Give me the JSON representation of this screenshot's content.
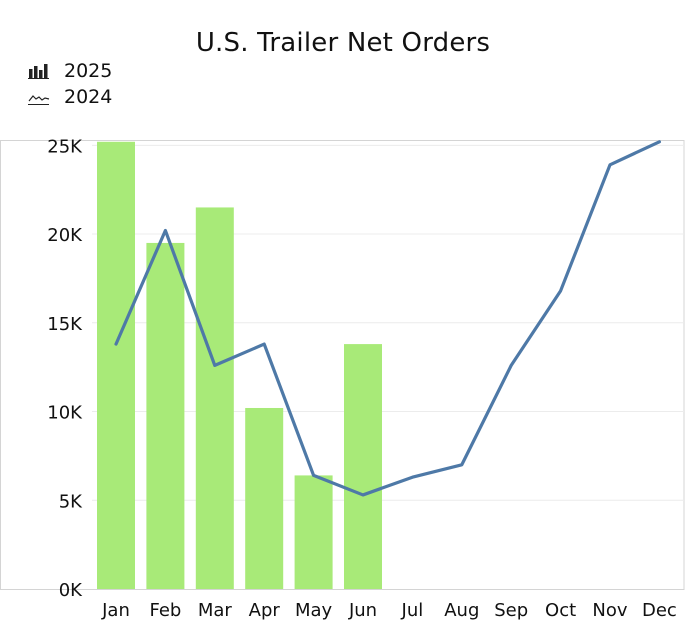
{
  "chart_data": {
    "type": "bar",
    "title": "U.S. Trailer Net Orders",
    "categories": [
      "Jan",
      "Feb",
      "Mar",
      "Apr",
      "May",
      "Jun",
      "Jul",
      "Aug",
      "Sep",
      "Oct",
      "Nov",
      "Dec"
    ],
    "series": [
      {
        "name": "2025",
        "type": "bar",
        "color": "#a8ea78",
        "values": [
          25200,
          19500,
          21500,
          10200,
          6400,
          13800,
          null,
          null,
          null,
          null,
          null,
          null
        ]
      },
      {
        "name": "2024",
        "type": "line",
        "color": "#4e79a7",
        "values": [
          13800,
          20200,
          12600,
          13800,
          6400,
          5300,
          6300,
          7000,
          12600,
          16800,
          23900,
          25200
        ]
      }
    ],
    "y_ticks": [
      "0K",
      "5K",
      "10K",
      "15K",
      "20K",
      "25K"
    ],
    "y_tick_values": [
      0,
      5000,
      10000,
      15000,
      20000,
      25000
    ],
    "ylim": [
      0,
      25300
    ],
    "grid": true,
    "legend_position": "top-left",
    "legend_icons": [
      "bar-chart-icon",
      "line-chart-icon"
    ]
  }
}
